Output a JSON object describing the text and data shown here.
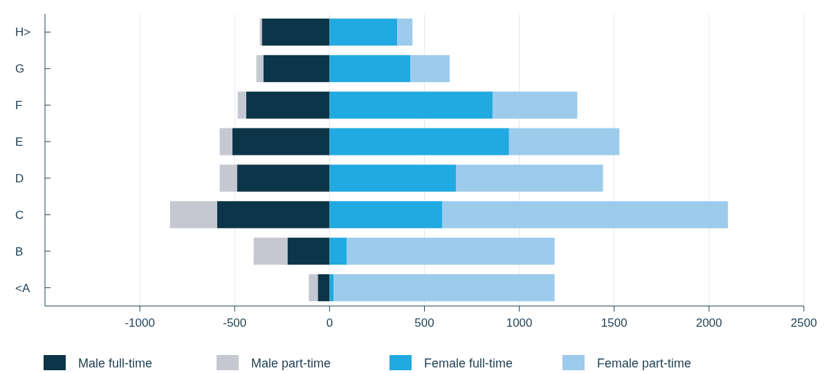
{
  "chart_data": {
    "type": "bar",
    "orientation": "horizontal",
    "stacked": true,
    "categories": [
      "H>",
      "G",
      "F",
      "E",
      "D",
      "C",
      "B",
      "<A"
    ],
    "series": [
      {
        "name": "Male full-time",
        "color": "#0d3549",
        "values": [
          -357,
          -349,
          -440,
          -513,
          -488,
          -593,
          -222,
          -62
        ]
      },
      {
        "name": "Male part-time",
        "color": "#c6c8d1",
        "values": [
          -11,
          -37,
          -44,
          -66,
          -91,
          -248,
          -178,
          -47
        ]
      },
      {
        "name": "Female full-time",
        "color": "#21a9e1",
        "values": [
          357,
          426,
          859,
          946,
          666,
          593,
          91,
          22
        ]
      },
      {
        "name": "Female part-time",
        "color": "#9ccbec",
        "values": [
          80,
          207,
          447,
          582,
          775,
          1507,
          1095,
          1164
        ]
      }
    ],
    "xlim": [
      -1500,
      2500
    ],
    "xticks": [
      -1000,
      -500,
      0,
      500,
      1000,
      1500,
      2000,
      2500
    ],
    "grid": "x",
    "legend": "bottom"
  }
}
